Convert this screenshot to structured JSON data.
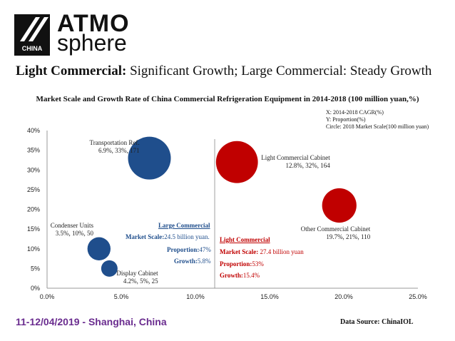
{
  "logo": {
    "line1": "ATMO",
    "line2": "sphere",
    "badge": "CHINA"
  },
  "headline": {
    "bold": "Light Commercial:",
    "rest": " Significant Growth; Large Commercial: Steady Growth"
  },
  "legend_note": [
    "X: 2014-2018 CAGR(%)",
    "Y: Proportion(%)",
    "Circle: 2018 Market Scale(100 million yuan)"
  ],
  "footer": {
    "event": "11-12/04/2019 - Shanghai, China",
    "source": "Data Source: ChinaIOL"
  },
  "colors": {
    "blue": "#1f4e8c",
    "red": "#c00000",
    "purple": "#6a2c8f"
  },
  "large_commercial": {
    "title": "Large Commercial",
    "scale_label": "Market Scale:",
    "scale_value": "24.5 billion yuan.",
    "proportion_label": "Proportion:",
    "proportion_value": "47%",
    "growth_label": "Growth:",
    "growth_value": "5.8%"
  },
  "light_commercial": {
    "title": "Light Commercial",
    "scale_label": "Market Scale:",
    "scale_value": " 27.4 billion yuan",
    "proportion_label": "Proportion:",
    "proportion_value": "53%",
    "growth_label": "Growth:",
    "growth_value": "15.4%"
  },
  "chart_data": {
    "type": "scatter",
    "title": "Market Scale and Growth Rate of China  Commercial Refrigeration Equipment in 2014-2018 (100 million yuan,%)",
    "xlim": [
      0,
      25
    ],
    "ylim": [
      0,
      40
    ],
    "x_ticks": [
      0,
      5,
      10,
      15,
      20,
      25
    ],
    "y_ticks": [
      0,
      5,
      10,
      15,
      20,
      25,
      30,
      35,
      40
    ],
    "x_tick_labels": [
      "0.0%",
      "5.0%",
      "10.0%",
      "15.0%",
      "20.0%",
      "25.0%"
    ],
    "y_tick_labels": [
      "0%",
      "5%",
      "10%",
      "15%",
      "20%",
      "25%",
      "30%",
      "35%",
      "40%"
    ],
    "divider_x": 11.3,
    "points": [
      {
        "name": "Transportation Ref.",
        "label": "6.9%, 33%, 171",
        "x": 6.9,
        "y": 33,
        "size": 171,
        "group": "blue"
      },
      {
        "name": "Condenser Units",
        "label": "3.5%, 10%, 50",
        "x": 3.5,
        "y": 10,
        "size": 50,
        "group": "blue"
      },
      {
        "name": "Display Cabinet",
        "label": "4.2%, 5%, 25",
        "x": 4.2,
        "y": 5,
        "size": 25,
        "group": "blue"
      },
      {
        "name": "Light Commercial Cabinet",
        "label": "12.8%, 32%, 164",
        "x": 12.8,
        "y": 32,
        "size": 164,
        "group": "red"
      },
      {
        "name": "Other Commercial Cabinet",
        "label": "19.7%, 21%, 110",
        "x": 19.7,
        "y": 21,
        "size": 110,
        "group": "red"
      }
    ]
  }
}
